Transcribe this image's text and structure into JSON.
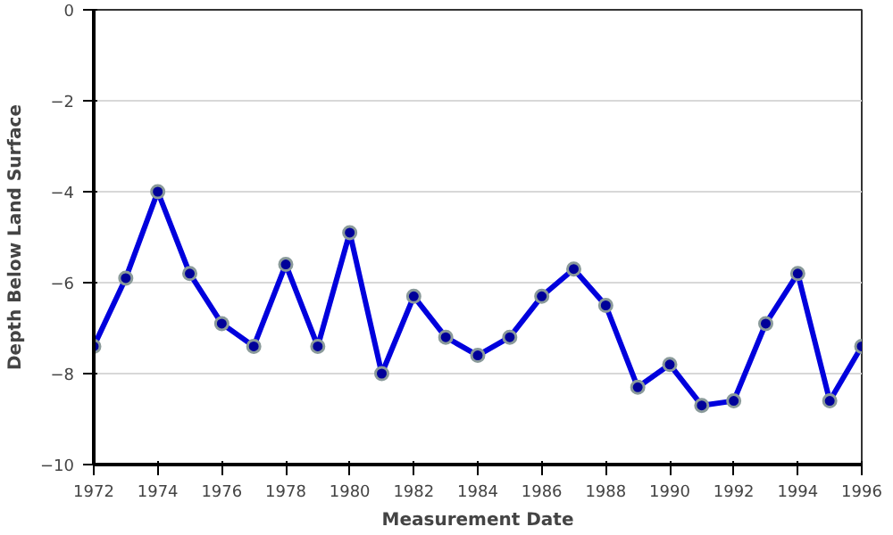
{
  "chart_data": {
    "type": "line",
    "xlabel": "Measurement Date",
    "ylabel": "Depth Below Land Surface",
    "x": [
      1972,
      1973,
      1974,
      1975,
      1976,
      1977,
      1978,
      1979,
      1980,
      1981,
      1982,
      1983,
      1984,
      1985,
      1986,
      1987,
      1988,
      1989,
      1990,
      1991,
      1992,
      1993,
      1994,
      1995,
      1996
    ],
    "series": [
      {
        "color": "#0000dd",
        "values": [
          -7.4,
          -5.9,
          -4.0,
          -5.8,
          -6.9,
          -7.4,
          -5.6,
          -7.4,
          -4.9,
          -8.0,
          -6.3,
          -7.2,
          -7.6,
          -7.2,
          -6.3,
          -5.7,
          -6.5,
          -8.3,
          -7.8,
          -8.7,
          -8.6,
          -6.9,
          -5.8,
          -8.6,
          -7.4
        ]
      }
    ],
    "xlim": [
      1972,
      1996
    ],
    "xticks": [
      1972,
      1974,
      1976,
      1978,
      1980,
      1982,
      1984,
      1986,
      1988,
      1990,
      1992,
      1994,
      1996
    ],
    "ylim": [
      -10,
      0
    ],
    "yticks": [
      -10,
      -8,
      -6,
      -4,
      -2,
      0
    ],
    "grid": "y",
    "marker": "circle",
    "line_style": "solid"
  }
}
